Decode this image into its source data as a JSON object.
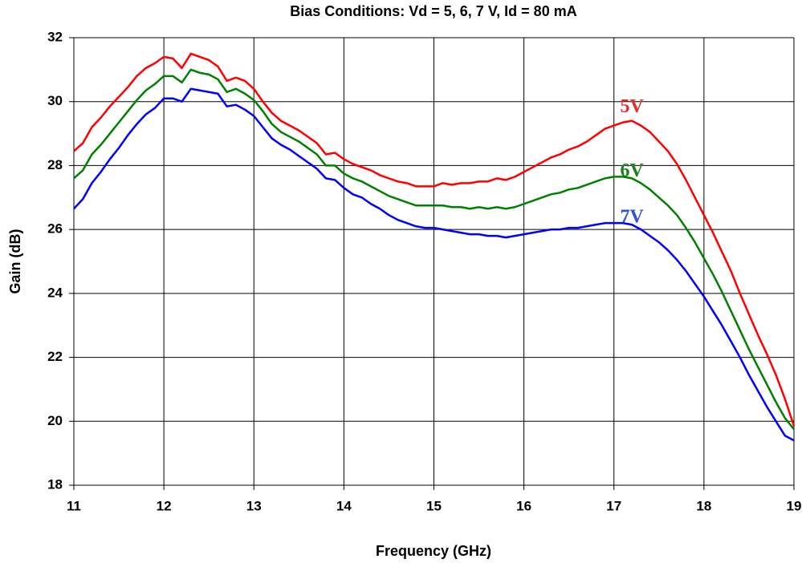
{
  "chart_data": {
    "type": "line",
    "title": "Bias Conditions:  Vd = 5, 6, 7 V, Id = 80 mA",
    "x_label": "Frequency (GHz)",
    "y_label": "Gain (dB)",
    "xlim": [
      11,
      19
    ],
    "xticks": [
      11,
      12,
      13,
      14,
      15,
      16,
      17,
      18,
      19
    ],
    "ylim": [
      18,
      32
    ],
    "yticks": [
      18,
      20,
      22,
      24,
      26,
      28,
      30,
      32
    ],
    "grid": true,
    "x": [
      11.0,
      11.1,
      11.2,
      11.3,
      11.4,
      11.5,
      11.6,
      11.7,
      11.8,
      11.9,
      12.0,
      12.1,
      12.2,
      12.3,
      12.4,
      12.5,
      12.6,
      12.7,
      12.8,
      12.9,
      13.0,
      13.1,
      13.2,
      13.3,
      13.4,
      13.5,
      13.6,
      13.7,
      13.8,
      13.9,
      14.0,
      14.1,
      14.2,
      14.3,
      14.4,
      14.5,
      14.6,
      14.7,
      14.8,
      14.9,
      15.0,
      15.1,
      15.2,
      15.3,
      15.4,
      15.5,
      15.6,
      15.7,
      15.8,
      15.9,
      16.0,
      16.1,
      16.2,
      16.3,
      16.4,
      16.5,
      16.6,
      16.7,
      16.8,
      16.9,
      17.0,
      17.1,
      17.2,
      17.3,
      17.4,
      17.5,
      17.6,
      17.7,
      17.8,
      17.9,
      18.0,
      18.1,
      18.2,
      18.3,
      18.4,
      18.5,
      18.6,
      18.7,
      18.8,
      18.9,
      19.0
    ],
    "series": [
      {
        "name": "5V",
        "color": "#ff0000",
        "values": [
          28.45,
          28.7,
          29.2,
          29.5,
          29.85,
          30.15,
          30.45,
          30.8,
          31.05,
          31.2,
          31.4,
          31.35,
          31.05,
          31.5,
          31.4,
          31.3,
          31.1,
          30.65,
          30.75,
          30.65,
          30.4,
          30.0,
          29.65,
          29.4,
          29.25,
          29.1,
          28.9,
          28.7,
          28.35,
          28.4,
          28.2,
          28.05,
          27.95,
          27.85,
          27.7,
          27.6,
          27.5,
          27.45,
          27.35,
          27.35,
          27.35,
          27.45,
          27.4,
          27.45,
          27.45,
          27.5,
          27.5,
          27.6,
          27.55,
          27.65,
          27.8,
          27.95,
          28.1,
          28.25,
          28.35,
          28.5,
          28.6,
          28.75,
          28.95,
          29.15,
          29.25,
          29.35,
          29.4,
          29.25,
          29.05,
          28.75,
          28.45,
          28.05,
          27.55,
          27.0,
          26.45,
          25.9,
          25.3,
          24.7,
          24.0,
          23.35,
          22.7,
          22.1,
          21.45,
          20.7,
          19.85
        ]
      },
      {
        "name": "6V",
        "color": "#008000",
        "values": [
          27.6,
          27.85,
          28.35,
          28.65,
          29.0,
          29.35,
          29.7,
          30.05,
          30.35,
          30.55,
          30.8,
          30.8,
          30.6,
          31.0,
          30.9,
          30.85,
          30.7,
          30.3,
          30.4,
          30.25,
          30.05,
          29.7,
          29.3,
          29.05,
          28.9,
          28.75,
          28.55,
          28.35,
          28.0,
          28.0,
          27.75,
          27.6,
          27.5,
          27.35,
          27.2,
          27.05,
          26.95,
          26.85,
          26.75,
          26.75,
          26.75,
          26.75,
          26.7,
          26.7,
          26.65,
          26.7,
          26.65,
          26.7,
          26.65,
          26.7,
          26.8,
          26.9,
          27.0,
          27.1,
          27.15,
          27.25,
          27.3,
          27.4,
          27.5,
          27.6,
          27.65,
          27.65,
          27.6,
          27.45,
          27.25,
          27.0,
          26.75,
          26.45,
          26.05,
          25.6,
          25.1,
          24.6,
          24.05,
          23.45,
          22.85,
          22.25,
          21.7,
          21.15,
          20.6,
          20.1,
          19.75
        ]
      },
      {
        "name": "7V",
        "color": "#0000ff",
        "values": [
          26.65,
          26.95,
          27.45,
          27.8,
          28.2,
          28.55,
          28.95,
          29.3,
          29.6,
          29.8,
          30.1,
          30.1,
          30.0,
          30.4,
          30.35,
          30.3,
          30.25,
          29.85,
          29.9,
          29.75,
          29.55,
          29.2,
          28.85,
          28.65,
          28.5,
          28.3,
          28.1,
          27.9,
          27.6,
          27.55,
          27.3,
          27.1,
          27.0,
          26.8,
          26.65,
          26.45,
          26.3,
          26.2,
          26.1,
          26.05,
          26.05,
          26.0,
          25.95,
          25.9,
          25.85,
          25.85,
          25.8,
          25.8,
          25.75,
          25.8,
          25.85,
          25.9,
          25.95,
          26.0,
          26.0,
          26.05,
          26.05,
          26.1,
          26.15,
          26.2,
          26.2,
          26.2,
          26.15,
          26.0,
          25.8,
          25.6,
          25.35,
          25.05,
          24.7,
          24.3,
          23.9,
          23.45,
          23.0,
          22.5,
          22.0,
          21.45,
          20.95,
          20.45,
          20.0,
          19.55,
          19.4
        ]
      }
    ],
    "annotations": [
      {
        "text": "5V",
        "x": 17.2,
        "y": 29.8,
        "color": "#e03030"
      },
      {
        "text": "6V",
        "x": 17.2,
        "y": 27.8,
        "color": "#208020"
      },
      {
        "text": "7V",
        "x": 17.2,
        "y": 26.35,
        "color": "#3050e0"
      }
    ]
  }
}
